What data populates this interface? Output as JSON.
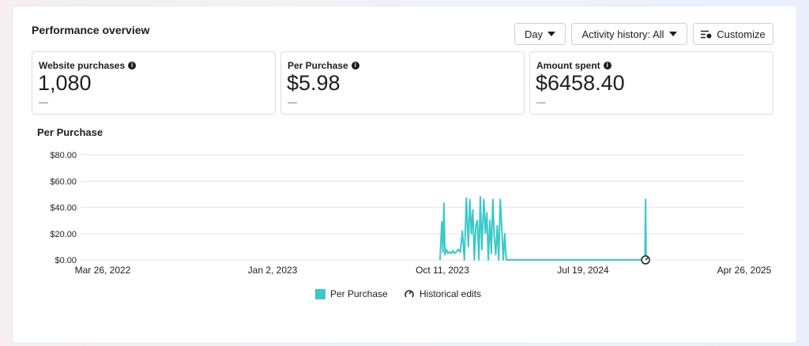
{
  "header": {
    "title": "Performance overview"
  },
  "controls": {
    "day_label": "Day",
    "activity_label": "Activity history: All",
    "customize_label": "Customize"
  },
  "metrics": [
    {
      "label": "Website purchases",
      "value": "1,080",
      "delta": "—"
    },
    {
      "label": "Per Purchase",
      "value": "$5.98",
      "delta": "—"
    },
    {
      "label": "Amount spent",
      "value": "$6458.40",
      "delta": "—"
    }
  ],
  "chart_title": "Per Purchase",
  "chart_data": {
    "type": "line",
    "title": "Per Purchase",
    "xlabel": "",
    "ylabel": "",
    "ylim": [
      0,
      80
    ],
    "y_ticks": [
      "$80.00",
      "$60.00",
      "$40.00",
      "$20.00",
      "$0.00"
    ],
    "y_tick_values": [
      80,
      60,
      40,
      20,
      0
    ],
    "x_ticks": [
      "Mar 26, 2022",
      "Jan 2, 2023",
      "Oct 11, 2023",
      "Jul 19, 2024",
      "Apr 26, 2025"
    ],
    "grid": true,
    "legend": "bottom",
    "color": "#3cc8c8",
    "series": [
      {
        "name": "Per Purchase",
        "x": [
          "2023-10-07",
          "2023-10-10",
          "2023-10-12",
          "2023-10-14",
          "2023-10-16",
          "2023-10-19",
          "2023-10-22",
          "2023-10-25",
          "2023-10-28",
          "2023-11-01",
          "2023-11-04",
          "2023-11-08",
          "2023-11-12",
          "2023-11-16",
          "2023-11-20",
          "2023-11-24",
          "2023-11-28",
          "2023-12-02",
          "2023-12-05",
          "2023-12-08",
          "2023-12-11",
          "2023-12-14",
          "2023-12-17",
          "2023-12-20",
          "2023-12-23",
          "2023-12-26",
          "2023-12-29",
          "2024-01-02",
          "2024-01-05",
          "2024-01-08",
          "2024-01-11",
          "2024-01-14",
          "2024-01-17",
          "2024-01-20",
          "2024-01-23",
          "2024-01-26",
          "2024-01-29",
          "2024-02-01",
          "2024-02-04",
          "2024-02-07",
          "2024-02-10",
          "2024-02-13",
          "2024-02-16",
          "2024-02-19",
          "2024-02-22",
          "2024-11-04",
          "2024-11-05",
          "2024-11-06"
        ],
        "values": [
          0,
          29,
          6,
          43,
          4,
          8,
          5,
          6,
          5,
          7,
          5,
          6,
          8,
          6,
          22,
          0,
          47,
          10,
          46,
          20,
          38,
          0,
          26,
          30,
          0,
          48,
          8,
          46,
          20,
          36,
          0,
          30,
          5,
          46,
          18,
          4,
          26,
          0,
          46,
          24,
          0,
          20,
          0,
          0,
          0,
          0,
          46,
          0
        ]
      }
    ],
    "legend_entries": [
      "Per Purchase",
      "Historical edits"
    ],
    "historical_edit_dates": [
      "2024-11-05"
    ]
  }
}
